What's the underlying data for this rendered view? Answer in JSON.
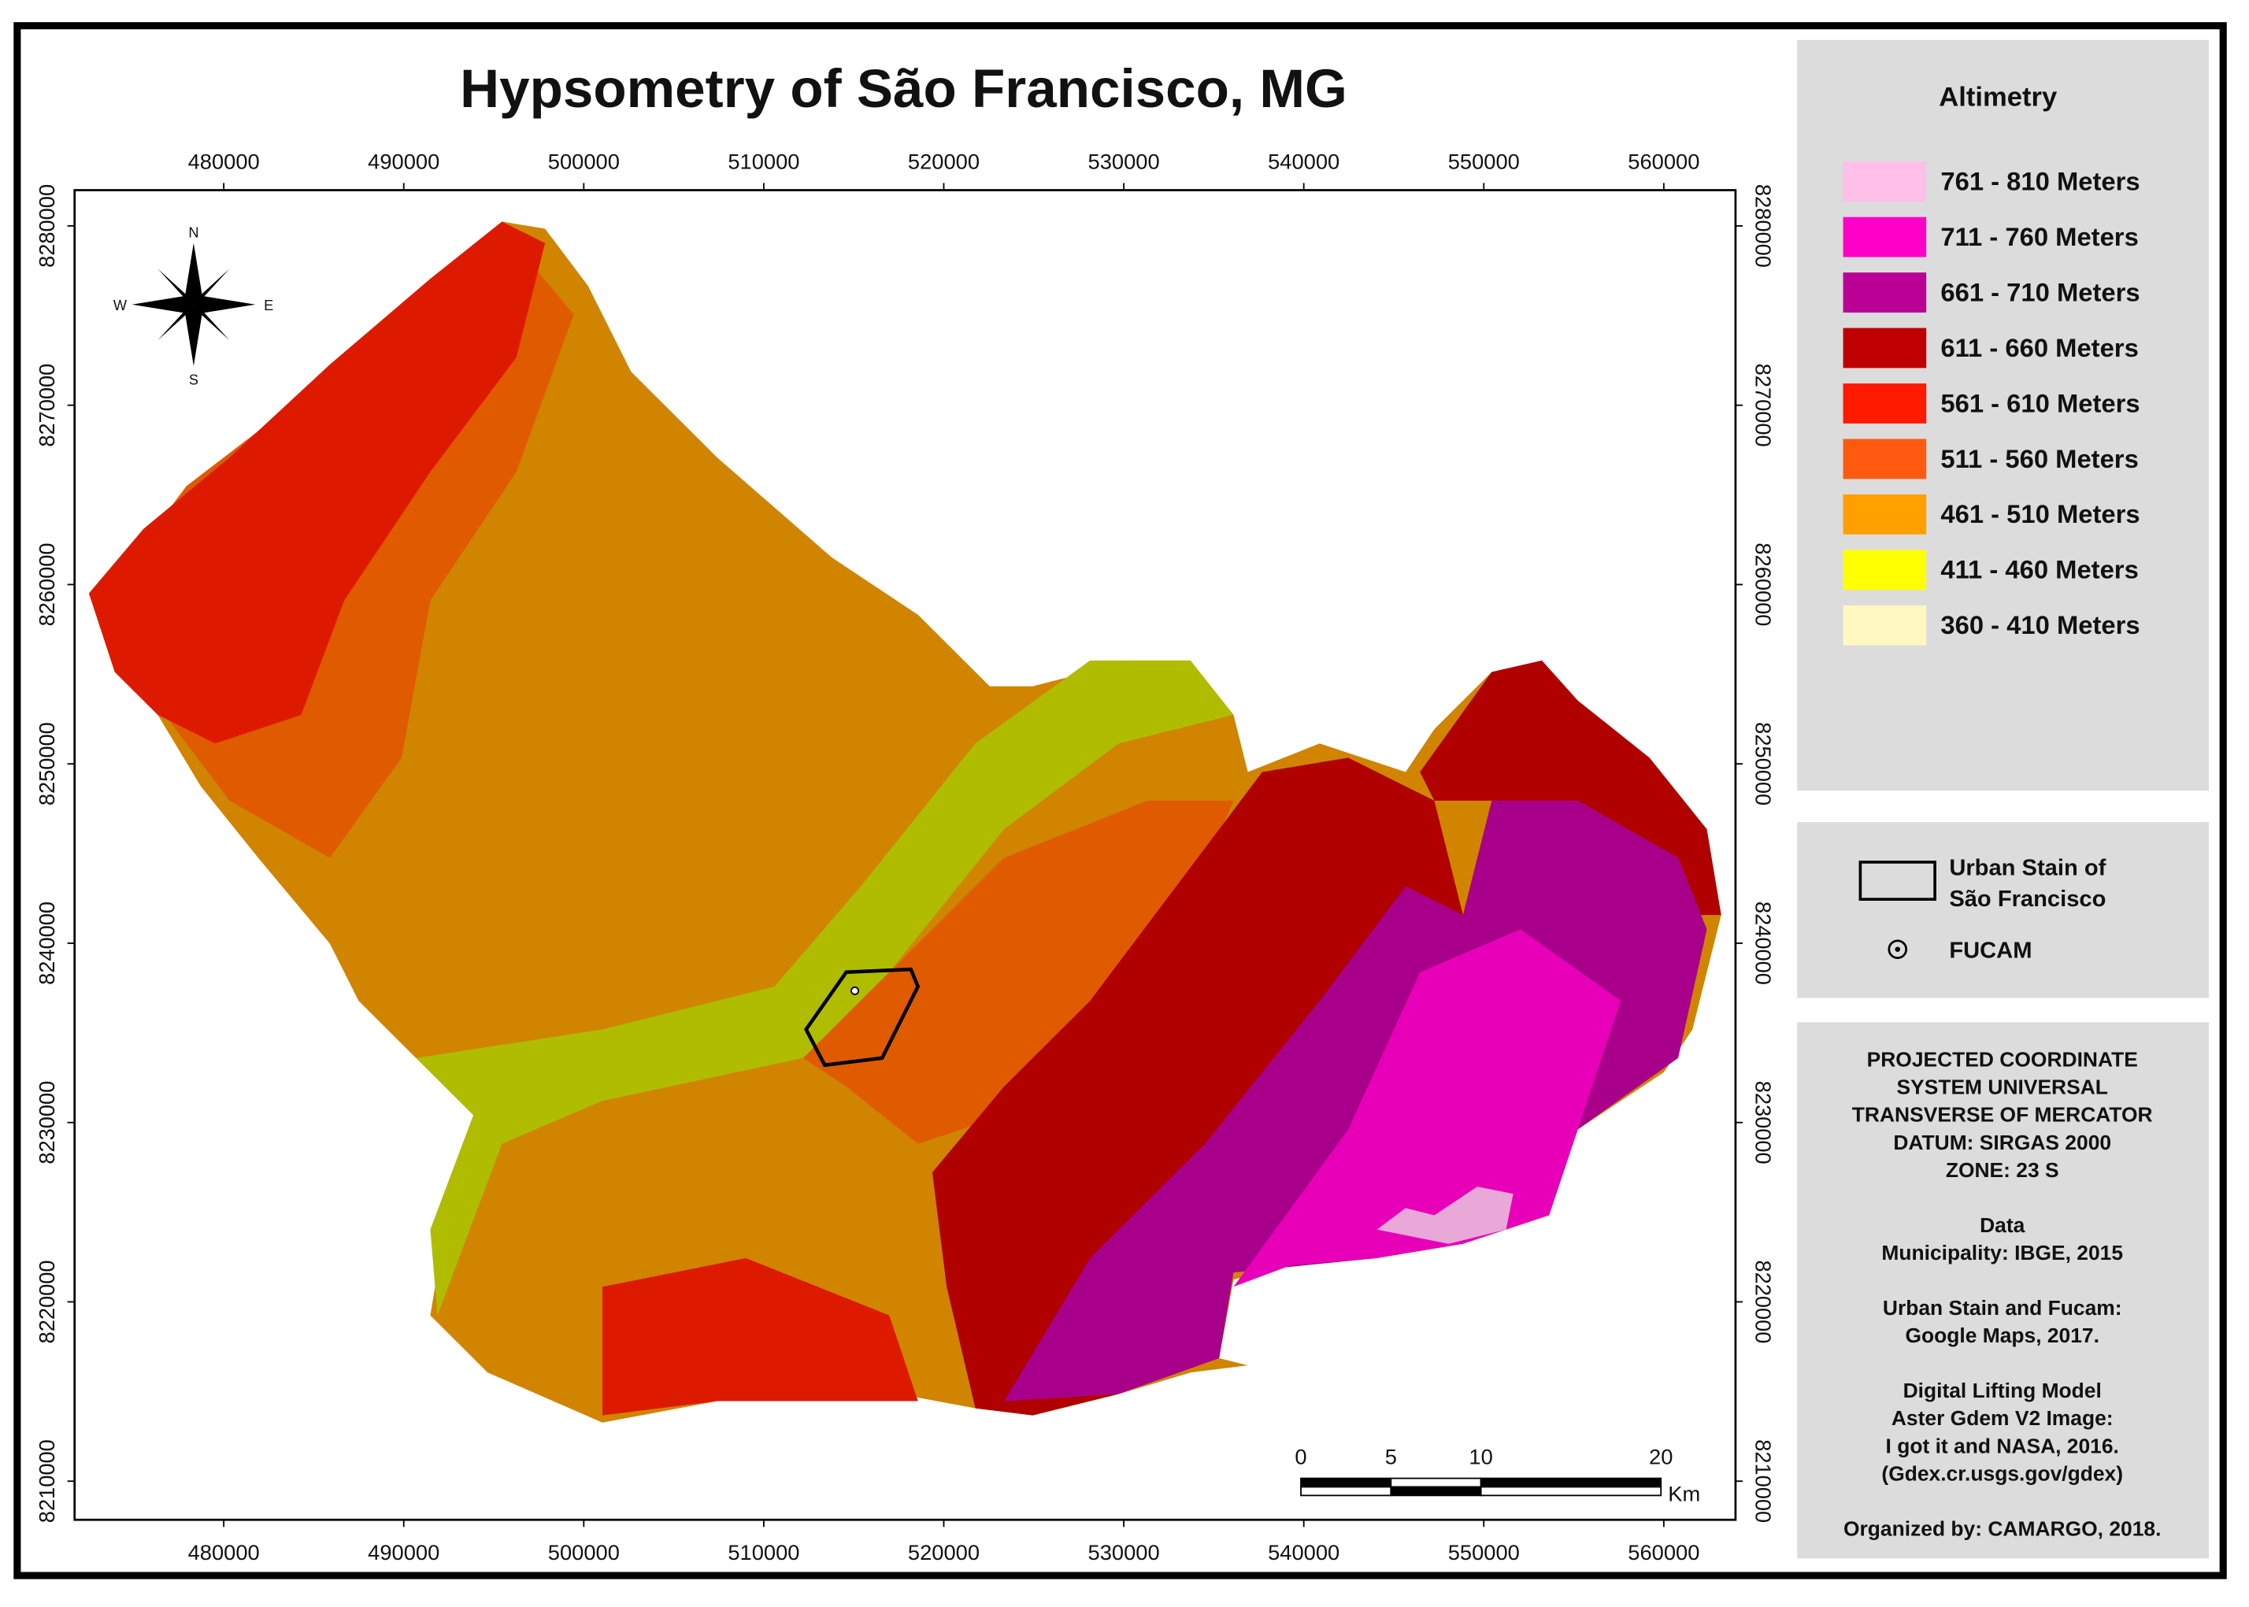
{
  "title": "Hypsometry of São Francisco, MG",
  "coordinates": {
    "x_ticks": [
      480000,
      490000,
      500000,
      510000,
      520000,
      530000,
      540000,
      550000,
      560000
    ],
    "y_ticks": [
      8210000,
      8220000,
      8230000,
      8240000,
      8250000,
      8260000,
      8270000,
      8280000
    ]
  },
  "compass": {
    "north": "N",
    "south": "S",
    "east": "E",
    "west": "W"
  },
  "legend": {
    "title": "Altimetry",
    "items": [
      {
        "label": "761 - 810 Meters",
        "color": "#ffbfe8"
      },
      {
        "label": "711 - 760 Meters",
        "color": "#ff00c8"
      },
      {
        "label": "661 - 710 Meters",
        "color": "#bb0095"
      },
      {
        "label": "611 - 660 Meters",
        "color": "#c00000"
      },
      {
        "label": "561 - 610 Meters",
        "color": "#ff1a00"
      },
      {
        "label": "511 - 560 Meters",
        "color": "#ff5a10"
      },
      {
        "label": "461 - 510 Meters",
        "color": "#ffa000"
      },
      {
        "label": "411 - 460 Meters",
        "color": "#ffff00"
      },
      {
        "label": "360 - 410 Meters",
        "color": "#fff8c0"
      }
    ]
  },
  "features": {
    "urban_stain": [
      "Urban Stain of",
      "São Francisco"
    ],
    "fucam": "FUCAM"
  },
  "notes": [
    [
      "PROJECTED COORDINATE",
      "SYSTEM UNIVERSAL",
      "TRANSVERSE OF MERCATOR",
      "DATUM: SIRGAS 2000",
      "ZONE: 23 S"
    ],
    [
      "Data",
      "Municipality: IBGE, 2015"
    ],
    [
      "Urban Stain and Fucam:",
      "Google Maps, 2017."
    ],
    [
      "Digital Lifting Model",
      "Aster Gdem V2 Image:",
      "I got it and NASA, 2016.",
      "(Gdex.cr.usgs.gov/gdex)"
    ],
    [
      "Organized by: CAMARGO, 2018."
    ]
  ],
  "scale_bar": {
    "ticks": [
      0,
      5,
      10,
      20
    ],
    "unit": "Km"
  }
}
